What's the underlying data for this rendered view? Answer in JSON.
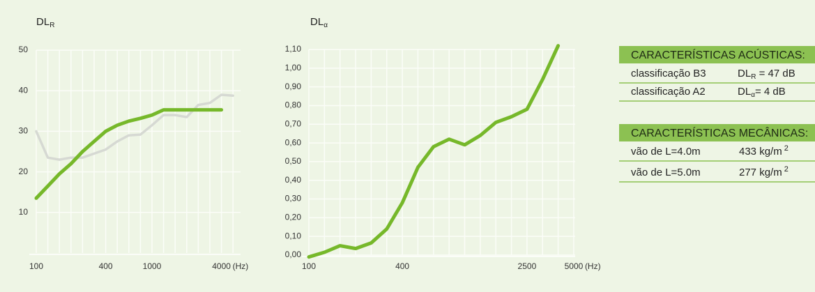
{
  "chart_data": [
    {
      "type": "line",
      "title": "DL",
      "title_sub": "R",
      "categories": [
        "100",
        null,
        null,
        null,
        null,
        null,
        "400",
        null,
        null,
        null,
        "1000",
        null,
        null,
        null,
        null,
        null,
        "4000",
        null
      ],
      "x_unit": "(Hz)",
      "series": [
        {
          "color": "#d6d9d3",
          "values": [
            30,
            23.5,
            23,
            23.5,
            23.5,
            24.5,
            25.5,
            27.5,
            29,
            29.2,
            31.5,
            34,
            34,
            33.5,
            36.5,
            37,
            39,
            38.8
          ]
        },
        {
          "color": "#76b82a",
          "values": [
            13.5,
            16.5,
            19.5,
            22,
            25,
            27.5,
            30,
            31.5,
            32.5,
            33.2,
            34,
            35.3,
            35.3,
            35.3,
            35.3,
            35.3,
            35.3,
            null
          ]
        }
      ],
      "ylim": [
        0,
        50
      ],
      "yticks": [
        10,
        20,
        30,
        40,
        50
      ],
      "grid": true
    },
    {
      "type": "line",
      "title": "DL",
      "title_sub": "α",
      "categories": [
        "100",
        null,
        null,
        null,
        null,
        null,
        "400",
        null,
        null,
        null,
        null,
        null,
        null,
        null,
        "2500",
        null,
        null,
        "5000"
      ],
      "x_unit": "(Hz)",
      "series": [
        {
          "color": "#76b82a",
          "values": [
            -0.01,
            0.015,
            0.05,
            0.035,
            0.065,
            0.14,
            0.28,
            0.47,
            0.58,
            0.62,
            0.59,
            0.64,
            0.71,
            0.74,
            0.78,
            0.94,
            1.12,
            null
          ]
        }
      ],
      "ylim": [
        0,
        1.1
      ],
      "yticks": [
        {
          "value": 0,
          "label": "0,00"
        },
        {
          "value": 0.1,
          "label": "0,10"
        },
        {
          "value": 0.2,
          "label": "0,20"
        },
        {
          "value": 0.3,
          "label": "0,30"
        },
        {
          "value": 0.4,
          "label": "0,40"
        },
        {
          "value": 0.5,
          "label": "0,50"
        },
        {
          "value": 0.6,
          "label": "0,60"
        },
        {
          "value": 0.7,
          "label": "0,70"
        },
        {
          "value": 0.8,
          "label": "0,80"
        },
        {
          "value": 0.9,
          "label": "0,90"
        },
        {
          "value": 1,
          "label": "1,00"
        },
        {
          "value": 1.1,
          "label": "1,10"
        }
      ],
      "grid": true
    }
  ],
  "specs": [
    {
      "header": "CARACTERÍSTICAS ACÚSTICAS:",
      "rows": [
        {
          "label": "classificação  B3",
          "value": "DL",
          "value_sub": "R",
          "value_rest": " = 47 dB"
        },
        {
          "label": "classificação  A2",
          "value": "DL",
          "value_sub": "α",
          "value_rest": "= 4 dB"
        }
      ]
    },
    {
      "header": "CARACTERÍSTICAS MECÂNICAS:",
      "rows": [
        {
          "label": "vão de  L=4.0m",
          "value": "433 kg/m",
          "value_sup": "2"
        },
        {
          "label": "vão de  L=5.0m",
          "value": "277 kg/m",
          "value_sup": "2"
        }
      ]
    }
  ]
}
